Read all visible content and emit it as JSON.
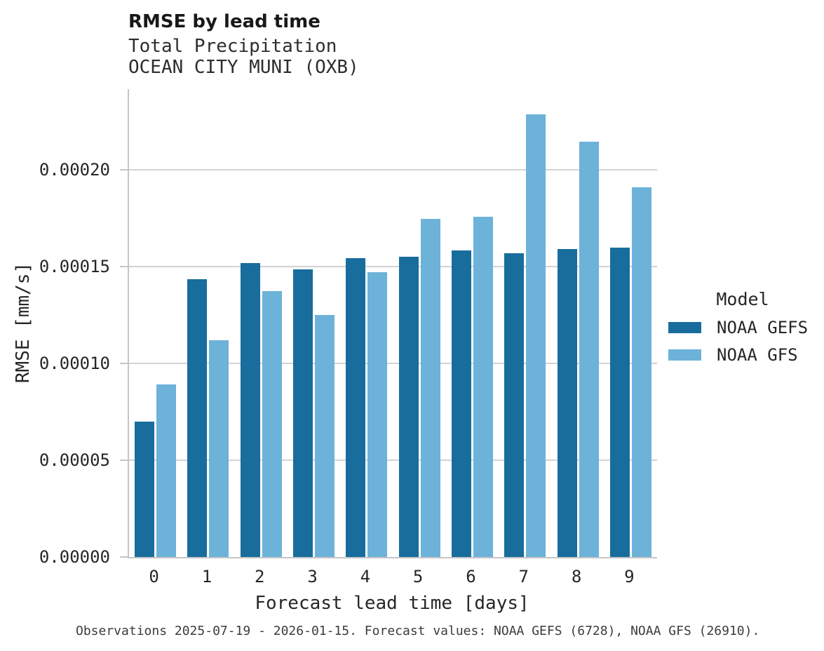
{
  "header": {
    "title": "RMSE by lead time",
    "subtitle1": "Total Precipitation",
    "subtitle2": "OCEAN CITY MUNI (OXB)"
  },
  "chart_data": {
    "type": "bar",
    "title": "RMSE by lead time",
    "subtitle": [
      "Total Precipitation",
      "OCEAN CITY MUNI (OXB)"
    ],
    "categories": [
      "0",
      "1",
      "2",
      "3",
      "4",
      "5",
      "6",
      "7",
      "8",
      "9"
    ],
    "series": [
      {
        "name": "NOAA GEFS",
        "color": "#186d9c",
        "values": [
          7e-05,
          0.0001435,
          0.000152,
          0.0001485,
          0.0001545,
          0.000155,
          0.0001585,
          0.000157,
          0.000159,
          0.00016
        ]
      },
      {
        "name": "NOAA GFS",
        "color": "#6db2d9",
        "values": [
          8.9e-05,
          0.000112,
          0.0001375,
          0.000125,
          0.000147,
          0.0001747,
          0.0001757,
          0.0002287,
          0.0002146,
          0.0001911
        ]
      }
    ],
    "xlabel": "Forecast lead time [days]",
    "ylabel": "RMSE [mm/s]",
    "ylim": [
      0,
      0.0002417
    ],
    "yticks": [
      0,
      5e-05,
      0.0001,
      0.00015,
      0.0002
    ],
    "ytick_labels": [
      "0.00000",
      "0.00005",
      "0.00010",
      "0.00015",
      "0.00020"
    ],
    "legend_title": "Model",
    "legend_position": "right",
    "grid": "horizontal",
    "grid_color": "#d3d3d3",
    "spine_color": "#c6c6c6"
  },
  "caption": {
    "text": "Observations 2025-07-19 - 2026-01-15. Forecast values: NOAA GEFS (6728), NOAA GFS (26910)."
  }
}
